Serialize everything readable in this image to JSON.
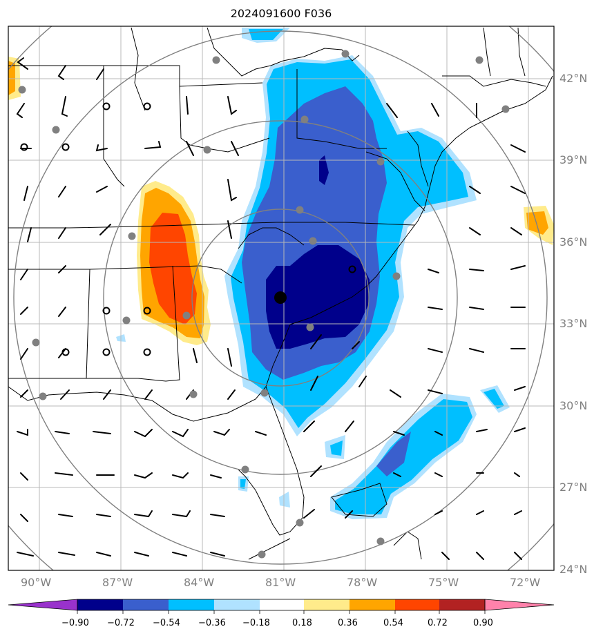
{
  "title": "2024091600 F036",
  "lat_labels": [
    "42°N",
    "39°N",
    "36°N",
    "33°N",
    "30°N",
    "27°N",
    "24°N"
  ],
  "lon_labels": [
    "90°W",
    "87°W",
    "84°W",
    "81°W",
    "78°W",
    "75°W",
    "72°W"
  ],
  "colorbar": {
    "labels": [
      "−0.90",
      "−0.72",
      "−0.54",
      "−0.36",
      "−0.18",
      "0.18",
      "0.36",
      "0.54",
      "0.72",
      "0.90"
    ],
    "colors": [
      "#9932cc",
      "#00008b",
      "#3a5fcd",
      "#00bfff",
      "#b0e2ff",
      "#ffffff",
      "#ffeb8b",
      "#ffa500",
      "#ff4500",
      "#b22222",
      "#ff82ab"
    ]
  },
  "field_colors": {
    "neg_light": "#b0e2ff",
    "neg_mid": "#00bfff",
    "neg_strong": "#3a5fcd",
    "neg_max": "#00008b",
    "pos_light": "#ffeb8b",
    "pos_mid": "#ffa500",
    "pos_strong": "#ff4500"
  }
}
